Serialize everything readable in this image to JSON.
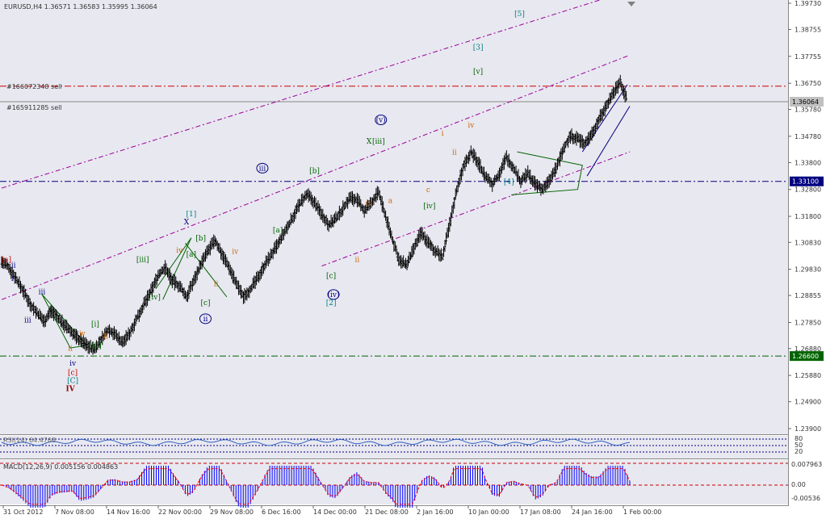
{
  "chart_data": {
    "type": "candlestick",
    "title": "EURUSD,H4  1.36571  1.36583  1.35995  1.36064",
    "symbol": "EURUSD",
    "timeframe": "H4",
    "ohlc_current": {
      "open": 1.36571,
      "high": 1.36583,
      "low": 1.35995,
      "close": 1.36064
    },
    "ylim": [
      1.239,
      1.3973
    ],
    "y_ticks": [
      "1.39730",
      "1.38755",
      "1.37755",
      "1.36750",
      "1.35780",
      "1.34780",
      "1.33800",
      "1.32800",
      "1.31800",
      "1.30830",
      "1.29830",
      "1.28855",
      "1.27850",
      "1.26880",
      "1.25880",
      "1.24900",
      "1.23900"
    ],
    "x_ticks": [
      "31 Oct 2012",
      "7 Nov 08:00",
      "14 Nov 16:00",
      "22 Nov 00:00",
      "29 Nov 08:00",
      "6 Dec 16:00",
      "14 Dec 00:00",
      "21 Dec 08:00",
      "2 Jan 16:00",
      "10 Jan 00:00",
      "17 Jan 08:00",
      "24 Jan 16:00",
      "1 Feb 00:00"
    ],
    "price_path": [
      [
        0,
        1.301
      ],
      [
        6,
        1.299
      ],
      [
        12,
        1.295
      ],
      [
        18,
        1.2905
      ],
      [
        24,
        1.2855
      ],
      [
        30,
        1.282
      ],
      [
        36,
        1.279
      ],
      [
        42,
        1.283
      ],
      [
        48,
        1.28
      ],
      [
        54,
        1.277
      ],
      [
        60,
        1.2745
      ],
      [
        66,
        1.272
      ],
      [
        72,
        1.27
      ],
      [
        78,
        1.2685
      ],
      [
        84,
        1.272
      ],
      [
        90,
        1.276
      ],
      [
        96,
        1.274
      ],
      [
        102,
        1.271
      ],
      [
        108,
        1.2745
      ],
      [
        114,
        1.28
      ],
      [
        120,
        1.285
      ],
      [
        126,
        1.29
      ],
      [
        132,
        1.296
      ],
      [
        138,
        1.299
      ],
      [
        144,
        1.294
      ],
      [
        150,
        1.292
      ],
      [
        156,
        1.288
      ],
      [
        162,
        1.294
      ],
      [
        168,
        1.3
      ],
      [
        174,
        1.305
      ],
      [
        180,
        1.309
      ],
      [
        186,
        1.304
      ],
      [
        192,
        1.299
      ],
      [
        198,
        1.293
      ],
      [
        204,
        1.288
      ],
      [
        210,
        1.291
      ],
      [
        216,
        1.295
      ],
      [
        222,
        1.3
      ],
      [
        228,
        1.304
      ],
      [
        234,
        1.308
      ],
      [
        240,
        1.313
      ],
      [
        246,
        1.318
      ],
      [
        252,
        1.323
      ],
      [
        258,
        1.326
      ],
      [
        264,
        1.323
      ],
      [
        270,
        1.319
      ],
      [
        276,
        1.315
      ],
      [
        282,
        1.317
      ],
      [
        288,
        1.321
      ],
      [
        294,
        1.325
      ],
      [
        300,
        1.324
      ],
      [
        306,
        1.32
      ],
      [
        312,
        1.323
      ],
      [
        318,
        1.327
      ],
      [
        324,
        1.318
      ],
      [
        330,
        1.309
      ],
      [
        336,
        1.301
      ],
      [
        342,
        1.3
      ],
      [
        348,
        1.306
      ],
      [
        354,
        1.312
      ],
      [
        360,
        1.308
      ],
      [
        366,
        1.305
      ],
      [
        372,
        1.303
      ],
      [
        378,
        1.315
      ],
      [
        384,
        1.328
      ],
      [
        390,
        1.337
      ],
      [
        396,
        1.342
      ],
      [
        402,
        1.338
      ],
      [
        408,
        1.333
      ],
      [
        414,
        1.33
      ],
      [
        420,
        1.334
      ],
      [
        426,
        1.34
      ],
      [
        432,
        1.336
      ],
      [
        438,
        1.331
      ],
      [
        444,
        1.334
      ],
      [
        450,
        1.33
      ],
      [
        456,
        1.328
      ],
      [
        462,
        1.331
      ],
      [
        468,
        1.336
      ],
      [
        474,
        1.343
      ],
      [
        480,
        1.348
      ],
      [
        486,
        1.347
      ],
      [
        492,
        1.345
      ],
      [
        498,
        1.349
      ],
      [
        504,
        1.354
      ],
      [
        510,
        1.359
      ],
      [
        516,
        1.364
      ],
      [
        522,
        1.368
      ],
      [
        528,
        1.361
      ]
    ],
    "series": [
      {
        "name": "#166072348 sell",
        "value": 1.36643,
        "style": "dash-dot",
        "color": "#cc0000"
      },
      {
        "name": "#165911285 sell",
        "value": 1.36064,
        "style": "solid",
        "color": "#888888"
      },
      {
        "name": "buy-level",
        "value": 1.331,
        "style": "dash-dot",
        "color": "#000080"
      },
      {
        "name": "green-level",
        "value": 1.266,
        "style": "dash-dot",
        "color": "#006400"
      }
    ],
    "channel_lines": [
      {
        "name": "upper",
        "x0": 0,
        "y0": 1.3285,
        "x1": 530,
        "y1": 1.402
      },
      {
        "name": "mid",
        "x0": 0,
        "y0": 1.287,
        "x1": 530,
        "y1": 1.378
      },
      {
        "name": "lower",
        "x0": 270,
        "y0": 1.2995,
        "x1": 530,
        "y1": 1.342
      }
    ],
    "markers": [
      {
        "label": "iii",
        "color": "#000080",
        "x": 220,
        "y": 1.335,
        "ring": true
      },
      {
        "label": "(v)",
        "color": "#000080",
        "x": 320,
        "y": 1.353,
        "ring": true
      },
      {
        "label": "(iv)",
        "color": "#000080",
        "x": 280,
        "y": 1.288,
        "ring": true
      },
      {
        "label": "ii",
        "color": "#000080",
        "x": 172,
        "y": 1.279,
        "ring": true
      },
      {
        "label": "[5]",
        "color": "#008080",
        "x": 437,
        "y": 1.3925
      },
      {
        "label": "[3]",
        "color": "#008080",
        "x": 402,
        "y": 1.38
      },
      {
        "label": "[v]",
        "color": "#006400",
        "x": 402,
        "y": 1.371
      },
      {
        "label": "[4]",
        "color": "#008080",
        "x": 428,
        "y": 1.33
      },
      {
        "label": "[iv]",
        "color": "#006400",
        "x": 361,
        "y": 1.321
      },
      {
        "label": "IV",
        "color": "#8b0000",
        "x": 58,
        "y": 1.253
      },
      {
        "label": "[c]",
        "color": "#cc0000",
        "x": 60,
        "y": 1.259
      },
      {
        "label": "[C]",
        "color": "#008080",
        "x": 60,
        "y": 1.256
      },
      {
        "label": "[b]",
        "color": "#006400",
        "x": 264,
        "y": 1.334
      },
      {
        "label": "[a]",
        "color": "#006400",
        "x": 233,
        "y": 1.312
      },
      {
        "label": "[c]",
        "color": "#006400",
        "x": 278,
        "y": 1.295
      },
      {
        "label": "[2]",
        "color": "#008080",
        "x": 278,
        "y": 1.285
      },
      {
        "label": "[1]",
        "color": "#008080",
        "x": 160,
        "y": 1.318
      },
      {
        "label": "[iii]",
        "color": "#006400",
        "x": 119,
        "y": 1.301
      },
      {
        "label": "[iv]",
        "color": "#006400",
        "x": 129,
        "y": 1.287
      },
      {
        "label": "[i]",
        "color": "#006400",
        "x": 79,
        "y": 1.277
      },
      {
        "label": "[ii]",
        "color": "#006400",
        "x": 80,
        "y": 1.269
      },
      {
        "label": "[a]",
        "color": "#006400",
        "x": 160,
        "y": 1.303
      },
      {
        "label": "[b]",
        "color": "#006400",
        "x": 168,
        "y": 1.309
      },
      {
        "label": "[c]",
        "color": "#006400",
        "x": 172,
        "y": 1.285
      },
      {
        "label": "X",
        "color": "#006400",
        "x": 310,
        "y": 1.345
      },
      {
        "label": "[iii]",
        "color": "#006400",
        "x": 318,
        "y": 1.345
      },
      {
        "label": "iii",
        "color": "#000080",
        "x": 34,
        "y": 1.289
      },
      {
        "label": "iii",
        "color": "#000080",
        "x": 22,
        "y": 1.2785
      },
      {
        "label": "iv",
        "color": "#000080",
        "x": 60,
        "y": 1.2625
      },
      {
        "label": "ii",
        "color": "#000080",
        "x": 10,
        "y": 1.299
      },
      {
        "label": "[a]",
        "color": "#cc0000",
        "x": 4,
        "y": 1.301
      },
      {
        "label": "i",
        "color": "#000080",
        "x": 9,
        "y": 1.294
      },
      {
        "label": "X",
        "color": "#000080",
        "x": 156,
        "y": 1.315
      },
      {
        "label": "ii",
        "color": "#cc6600",
        "x": 58,
        "y": 1.268
      },
      {
        "label": "iv",
        "color": "#cc6600",
        "x": 68,
        "y": 1.2735
      },
      {
        "label": "ii",
        "color": "#cc6600",
        "x": 88,
        "y": 1.2725
      },
      {
        "label": "iv",
        "color": "#cc6600",
        "x": 150,
        "y": 1.3045
      },
      {
        "label": "ii",
        "color": "#cc6600",
        "x": 181,
        "y": 1.292
      },
      {
        "label": "iv",
        "color": "#cc6600",
        "x": 197,
        "y": 1.304
      },
      {
        "label": "ii",
        "color": "#cc6600",
        "x": 300,
        "y": 1.301
      },
      {
        "label": "iv",
        "color": "#cc6600",
        "x": 310,
        "y": 1.322
      },
      {
        "label": "a",
        "color": "#cc6600",
        "x": 328,
        "y": 1.323
      },
      {
        "label": "c",
        "color": "#cc6600",
        "x": 360,
        "y": 1.327
      },
      {
        "label": "ii",
        "color": "#cc6600",
        "x": 382,
        "y": 1.341
      },
      {
        "label": "iv",
        "color": "#cc6600",
        "x": 396,
        "y": 1.351
      },
      {
        "label": "i",
        "color": "#cc6600",
        "x": 372,
        "y": 1.348
      }
    ],
    "grid": false,
    "indicators": [
      {
        "name": "RSI(14)",
        "title": "RSI(14) 64.4768",
        "levels": [
          70,
          50,
          30
        ]
      },
      {
        "name": "MACD(12,26,9)",
        "title": "MACD(12,26,9) 0.005156 0.004863",
        "y_ticks": [
          "0.007963",
          "0.00",
          "-0.00536"
        ]
      }
    ],
    "price_tags": [
      {
        "value": 1.36064,
        "text": "1.36064",
        "bg": "#c0c0c0",
        "fg": "#000000"
      },
      {
        "value": 1.331,
        "text": "1.33100",
        "bg": "#000080",
        "fg": "#ffffff"
      },
      {
        "value": 1.266,
        "text": "1.26600",
        "bg": "#006400",
        "fg": "#ffffff"
      }
    ],
    "colors": {
      "bg": "#e8e8f0",
      "candle": "#000000",
      "channel": "#990099",
      "macd": "#0000ff",
      "signal": "#ff0000"
    }
  },
  "labels": {
    "header": "EURUSD,H4  1.36571  1.36583  1.35995  1.36064",
    "order1": "#166072348 sell",
    "order2": "#165911285 sell",
    "rsi_title": "RSI(14) 64.4768",
    "macd_title": "MACD(12,26,9) 0.005156 0.004863"
  }
}
